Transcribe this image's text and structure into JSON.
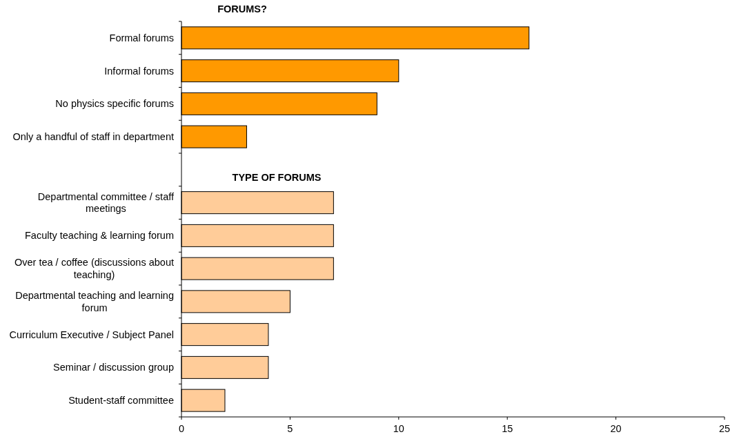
{
  "chart_data": {
    "type": "bar",
    "orientation": "horizontal",
    "title": "FORUMS?",
    "annotations": [
      "TYPE OF FORUMS"
    ],
    "categories": [
      "Formal forums",
      "Informal forums",
      "No physics specific forums",
      "Only a handful of staff in department",
      null,
      "Departmental committee / staff meetings",
      "Faculty teaching & learning forum",
      "Over tea / coffee (discussions about teaching)",
      "Departmental teaching and learning forum",
      "Curriculum Executive / Subject Panel",
      "Seminar / discussion group",
      "Student-staff committee"
    ],
    "values": [
      16,
      10,
      9,
      3,
      null,
      7,
      7,
      7,
      5,
      4,
      4,
      2
    ],
    "colors": [
      "#ff9900",
      "#ff9900",
      "#ff9900",
      "#ff9900",
      null,
      "#ffcc99",
      "#ffcc99",
      "#ffcc99",
      "#ffcc99",
      "#ffcc99",
      "#ffcc99",
      "#ffcc99"
    ],
    "xlim": [
      0,
      25
    ],
    "xticks": [
      0,
      5,
      10,
      15,
      20,
      25
    ],
    "grid": false
  }
}
